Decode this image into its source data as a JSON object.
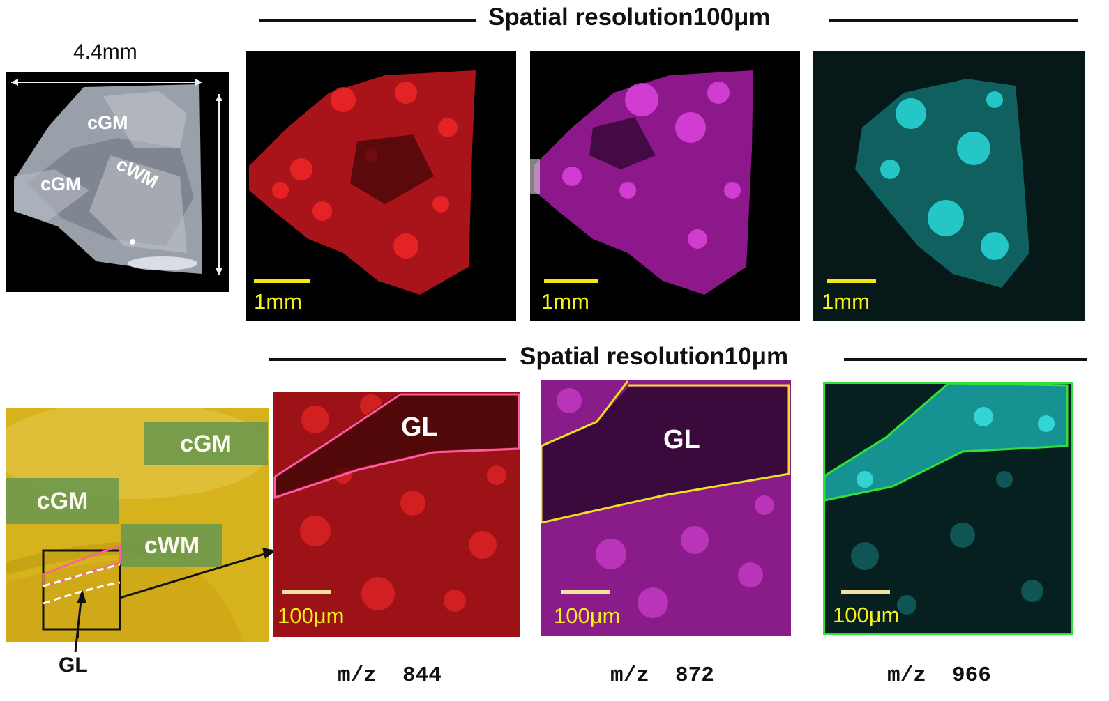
{
  "top_section": {
    "title": "Spatial resolution100μm",
    "dimension_label": "4.4mm",
    "tissue_labels": [
      "cGM",
      "cGM",
      "cWM"
    ],
    "scale_label": "1mm"
  },
  "bottom_section": {
    "title": "Spatial resolution10μm",
    "region_labels": [
      "cGM",
      "cGM",
      "cWM"
    ],
    "gl_arrow_label": "GL",
    "scale_label": "100μm",
    "roi_label": "GL"
  },
  "ions": [
    {
      "label": "m/z  844",
      "color": "#e0141b"
    },
    {
      "label": "m/z  872",
      "color": "#c81ec8"
    },
    {
      "label": "m/z  966",
      "color": "#28c8c8"
    }
  ],
  "roi_colors": [
    "#ff5aa6",
    "#f0e020",
    "#32e03a"
  ]
}
